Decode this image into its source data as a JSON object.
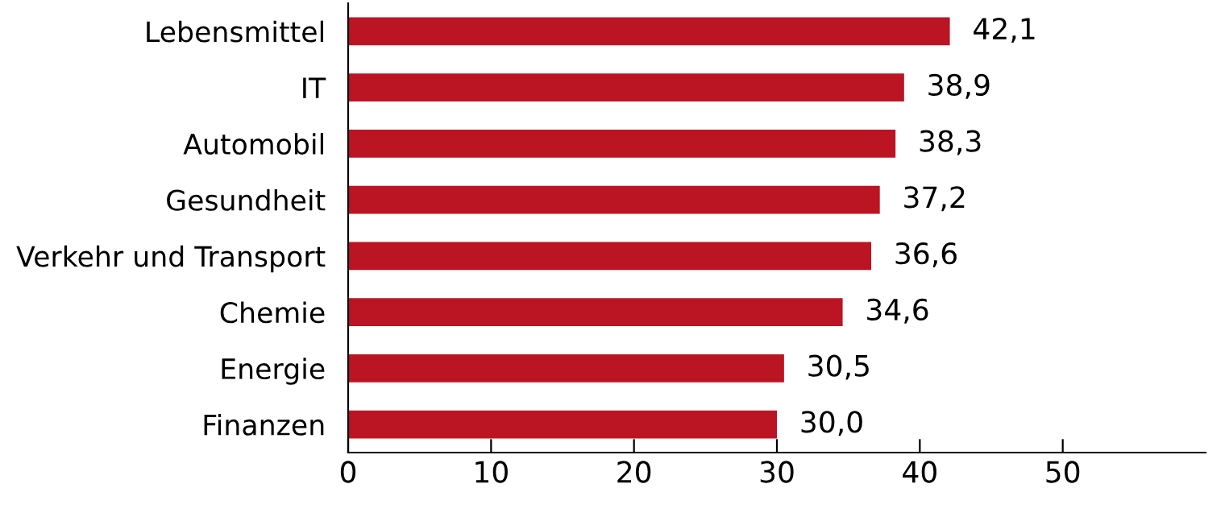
{
  "chart_data": {
    "type": "bar",
    "orientation": "horizontal",
    "categories": [
      "Lebensmittel",
      "IT",
      "Automobil",
      "Gesundheit",
      "Verkehr und Transport",
      "Chemie",
      "Energie",
      "Finanzen"
    ],
    "values": [
      42.1,
      38.9,
      38.3,
      37.2,
      36.6,
      34.6,
      30.5,
      30.0
    ],
    "value_labels": [
      "42,1",
      "38,9",
      "38,3",
      "37,2",
      "36,6",
      "34,6",
      "30,5",
      "30,0"
    ],
    "color": "#bb1423",
    "xlim": [
      0,
      60
    ],
    "xticks": [
      0,
      10,
      20,
      30,
      40,
      50
    ],
    "grid": false,
    "legend": false
  }
}
